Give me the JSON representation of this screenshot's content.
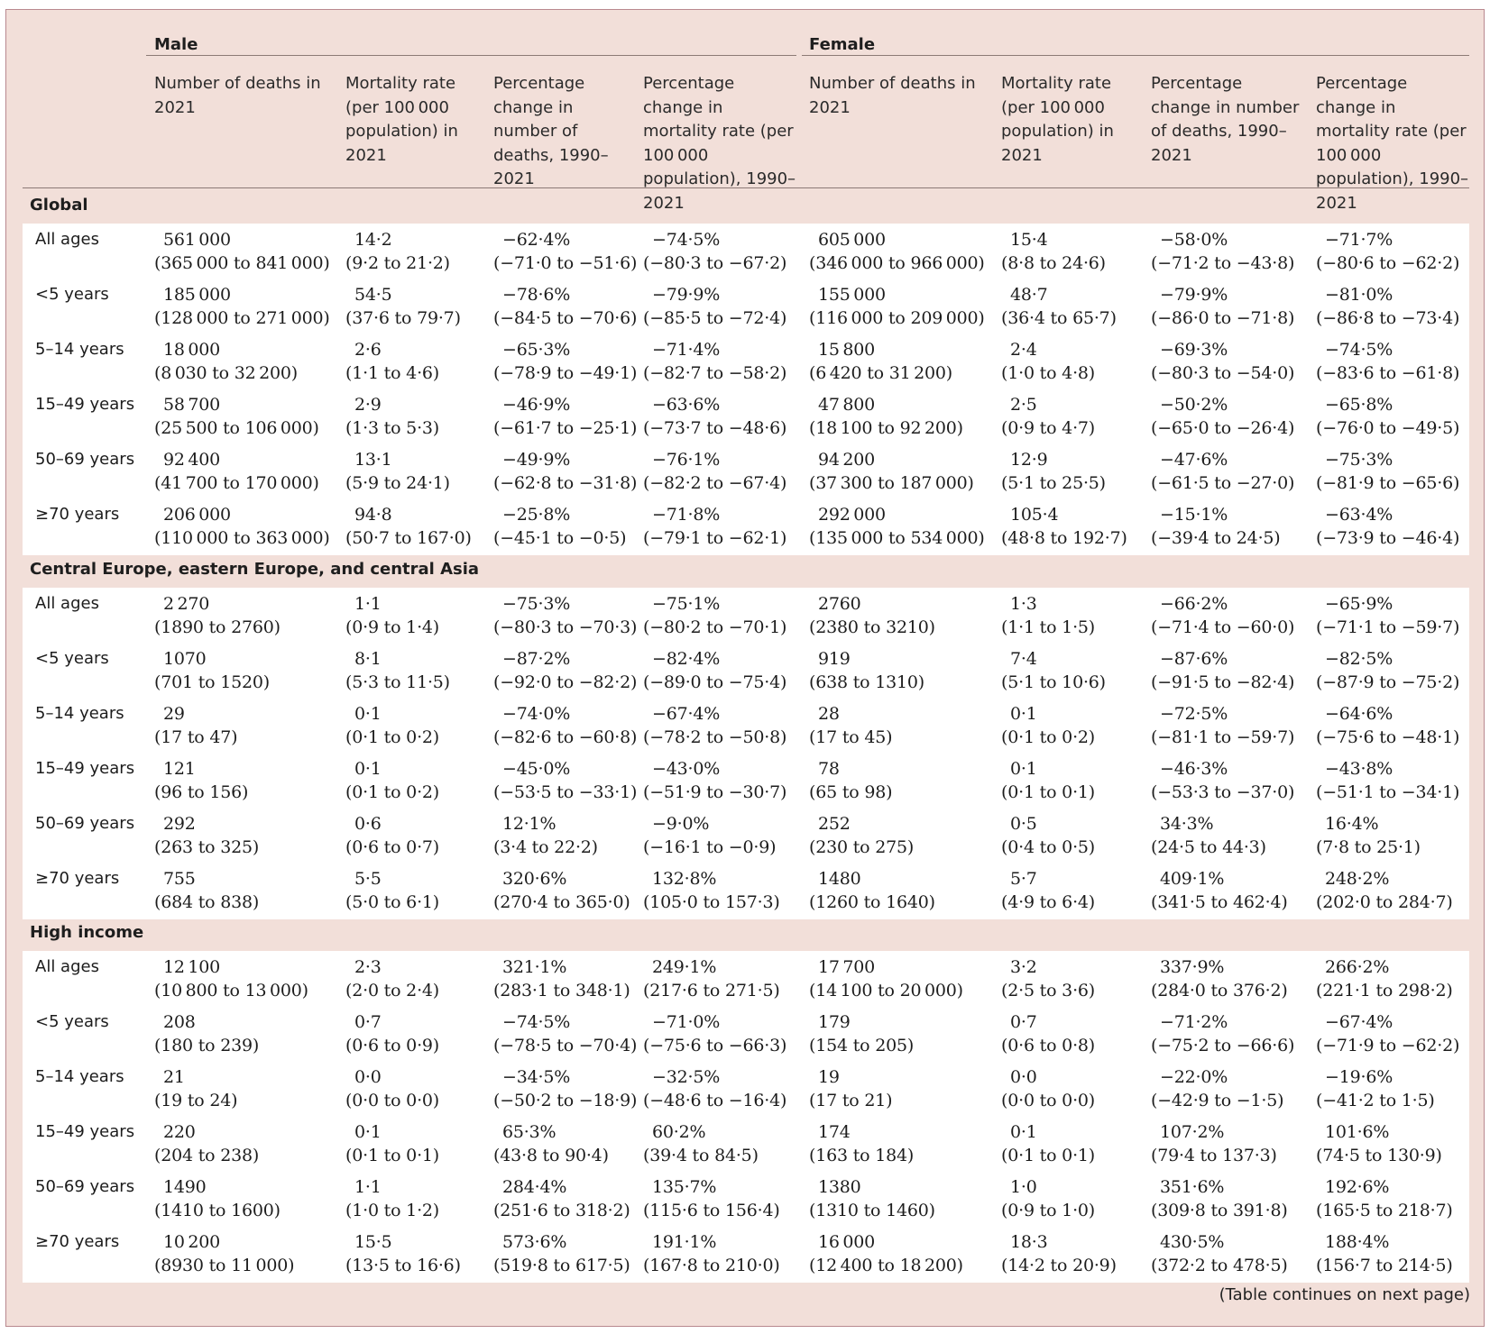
{
  "header": {
    "groups": {
      "male": "Male",
      "female": "Female"
    },
    "columns": [
      "Number of deaths in 2021",
      "Mortality rate (per 100 000 population) in 2021",
      "Percentage change in number of deaths, 1990–2021",
      "Percentage change in mortality rate (per 100 000 population), 1990–2021",
      "Number of deaths in 2021",
      "Mortality rate (per 100 000 population) in 2021",
      "Percentage change in number of deaths, 1990–2021",
      "Percentage change in mortality rate (per 100 000 population), 1990–2021"
    ]
  },
  "sections": [
    {
      "title": "Global",
      "rows": [
        {
          "label": "All ages",
          "cells": [
            {
              "v": "561 000",
              "ci": "(365 000 to 841 000)"
            },
            {
              "v": "14·2",
              "ci": "(9·2 to 21·2)"
            },
            {
              "v": "−62·4%",
              "ci": "(−71·0 to −51·6)"
            },
            {
              "v": "−74·5%",
              "ci": "(−80·3 to −67·2)"
            },
            {
              "v": "605 000",
              "ci": "(346 000 to 966 000)"
            },
            {
              "v": "15·4",
              "ci": "(8·8 to 24·6)"
            },
            {
              "v": "−58·0%",
              "ci": "(−71·2 to −43·8)"
            },
            {
              "v": "−71·7%",
              "ci": "(−80·6 to −62·2)"
            }
          ]
        },
        {
          "label": "<5 years",
          "cells": [
            {
              "v": "185 000",
              "ci": "(128 000 to 271 000)"
            },
            {
              "v": "54·5",
              "ci": "(37·6 to 79·7)"
            },
            {
              "v": "−78·6%",
              "ci": "(−84·5 to −70·6)"
            },
            {
              "v": "−79·9%",
              "ci": "(−85·5 to −72·4)"
            },
            {
              "v": "155 000",
              "ci": "(116 000 to 209 000)"
            },
            {
              "v": "48·7",
              "ci": "(36·4 to 65·7)"
            },
            {
              "v": "−79·9%",
              "ci": "(−86·0 to −71·8)"
            },
            {
              "v": "−81·0%",
              "ci": "(−86·8 to −73·4)"
            }
          ]
        },
        {
          "label": "5–14 years",
          "cells": [
            {
              "v": "18 000",
              "ci": "(8 030 to 32 200)"
            },
            {
              "v": "2·6",
              "ci": "(1·1 to 4·6)"
            },
            {
              "v": "−65·3%",
              "ci": "(−78·9 to −49·1)"
            },
            {
              "v": "−71·4%",
              "ci": "(−82·7 to −58·2)"
            },
            {
              "v": "15 800",
              "ci": "(6 420 to 31 200)"
            },
            {
              "v": "2·4",
              "ci": "(1·0 to 4·8)"
            },
            {
              "v": "−69·3%",
              "ci": "(−80·3 to −54·0)"
            },
            {
              "v": "−74·5%",
              "ci": "(−83·6 to −61·8)"
            }
          ]
        },
        {
          "label": "15–49 years",
          "cells": [
            {
              "v": "58 700",
              "ci": "(25 500 to 106 000)"
            },
            {
              "v": "2·9",
              "ci": "(1·3 to 5·3)"
            },
            {
              "v": "−46·9%",
              "ci": "(−61·7 to −25·1)"
            },
            {
              "v": "−63·6%",
              "ci": "(−73·7 to −48·6)"
            },
            {
              "v": "47 800",
              "ci": "(18 100 to 92 200)"
            },
            {
              "v": "2·5",
              "ci": "(0·9 to 4·7)"
            },
            {
              "v": "−50·2%",
              "ci": "(−65·0 to −26·4)"
            },
            {
              "v": "−65·8%",
              "ci": "(−76·0 to −49·5)"
            }
          ]
        },
        {
          "label": "50–69 years",
          "cells": [
            {
              "v": "92 400",
              "ci": "(41 700 to 170 000)"
            },
            {
              "v": "13·1",
              "ci": "(5·9 to 24·1)"
            },
            {
              "v": "−49·9%",
              "ci": "(−62·8 to −31·8)"
            },
            {
              "v": "−76·1%",
              "ci": "(−82·2 to −67·4)"
            },
            {
              "v": "94 200",
              "ci": "(37 300 to 187 000)"
            },
            {
              "v": "12·9",
              "ci": "(5·1 to 25·5)"
            },
            {
              "v": "−47·6%",
              "ci": "(−61·5 to −27·0)"
            },
            {
              "v": "−75·3%",
              "ci": "(−81·9 to −65·6)"
            }
          ]
        },
        {
          "label": "≥70 years",
          "cells": [
            {
              "v": "206 000",
              "ci": "(110 000 to 363 000)"
            },
            {
              "v": "94·8",
              "ci": "(50·7 to 167·0)"
            },
            {
              "v": "−25·8%",
              "ci": "(−45·1 to −0·5)"
            },
            {
              "v": "−71·8%",
              "ci": "(−79·1 to −62·1)"
            },
            {
              "v": "292 000",
              "ci": "(135 000 to 534 000)"
            },
            {
              "v": "105·4",
              "ci": "(48·8 to 192·7)"
            },
            {
              "v": "−15·1%",
              "ci": "(−39·4 to 24·5)"
            },
            {
              "v": "−63·4%",
              "ci": "(−73·9 to −46·4)"
            }
          ]
        }
      ]
    },
    {
      "title": "Central Europe, eastern Europe, and central Asia",
      "rows": [
        {
          "label": "All ages",
          "cells": [
            {
              "v": "2 270",
              "ci": "(1890 to 2760)"
            },
            {
              "v": "1·1",
              "ci": "(0·9 to 1·4)"
            },
            {
              "v": "−75·3%",
              "ci": "(−80·3 to −70·3)"
            },
            {
              "v": "−75·1%",
              "ci": "(−80·2 to −70·1)"
            },
            {
              "v": "2760",
              "ci": "(2380 to 3210)"
            },
            {
              "v": "1·3",
              "ci": "(1·1 to 1·5)"
            },
            {
              "v": "−66·2%",
              "ci": "(−71·4 to −60·0)"
            },
            {
              "v": "−65·9%",
              "ci": "(−71·1 to −59·7)"
            }
          ]
        },
        {
          "label": "<5 years",
          "cells": [
            {
              "v": "1070",
              "ci": "(701 to 1520)"
            },
            {
              "v": "8·1",
              "ci": "(5·3 to 11·5)"
            },
            {
              "v": "−87·2%",
              "ci": "(−92·0 to −82·2)"
            },
            {
              "v": "−82·4%",
              "ci": "(−89·0 to −75·4)"
            },
            {
              "v": "919",
              "ci": "(638 to 1310)"
            },
            {
              "v": "7·4",
              "ci": "(5·1 to 10·6)"
            },
            {
              "v": "−87·6%",
              "ci": "(−91·5 to −82·4)"
            },
            {
              "v": "−82·5%",
              "ci": "(−87·9 to −75·2)"
            }
          ]
        },
        {
          "label": "5–14 years",
          "cells": [
            {
              "v": "29",
              "ci": "(17 to 47)"
            },
            {
              "v": "0·1",
              "ci": "(0·1 to 0·2)"
            },
            {
              "v": "−74·0%",
              "ci": "(−82·6 to −60·8)"
            },
            {
              "v": "−67·4%",
              "ci": "(−78·2 to −50·8)"
            },
            {
              "v": "28",
              "ci": "(17 to 45)"
            },
            {
              "v": "0·1",
              "ci": "(0·1 to 0·2)"
            },
            {
              "v": "−72·5%",
              "ci": "(−81·1 to −59·7)"
            },
            {
              "v": "−64·6%",
              "ci": "(−75·6 to −48·1)"
            }
          ]
        },
        {
          "label": "15–49 years",
          "cells": [
            {
              "v": "121",
              "ci": "(96 to 156)"
            },
            {
              "v": "0·1",
              "ci": "(0·1 to 0·2)"
            },
            {
              "v": "−45·0%",
              "ci": "(−53·5 to −33·1)"
            },
            {
              "v": "−43·0%",
              "ci": "(−51·9 to −30·7)"
            },
            {
              "v": "78",
              "ci": "(65 to 98)"
            },
            {
              "v": "0·1",
              "ci": "(0·1 to 0·1)"
            },
            {
              "v": "−46·3%",
              "ci": "(−53·3 to −37·0)"
            },
            {
              "v": "−43·8%",
              "ci": "(−51·1 to −34·1)"
            }
          ]
        },
        {
          "label": "50–69 years",
          "cells": [
            {
              "v": "292",
              "ci": "(263 to 325)"
            },
            {
              "v": "0·6",
              "ci": "(0·6 to 0·7)"
            },
            {
              "v": "12·1%",
              "ci": "(3·4 to 22·2)"
            },
            {
              "v": "−9·0%",
              "ci": "(−16·1 to −0·9)"
            },
            {
              "v": "252",
              "ci": "(230 to 275)"
            },
            {
              "v": "0·5",
              "ci": "(0·4 to 0·5)"
            },
            {
              "v": "34·3%",
              "ci": "(24·5 to 44·3)"
            },
            {
              "v": "16·4%",
              "ci": "(7·8 to 25·1)"
            }
          ]
        },
        {
          "label": "≥70 years",
          "cells": [
            {
              "v": "755",
              "ci": "(684 to 838)"
            },
            {
              "v": "5·5",
              "ci": "(5·0 to 6·1)"
            },
            {
              "v": "320·6%",
              "ci": "(270·4 to 365·0)"
            },
            {
              "v": "132·8%",
              "ci": "(105·0 to 157·3)"
            },
            {
              "v": "1480",
              "ci": "(1260 to 1640)"
            },
            {
              "v": "5·7",
              "ci": "(4·9 to 6·4)"
            },
            {
              "v": "409·1%",
              "ci": "(341·5 to 462·4)"
            },
            {
              "v": "248·2%",
              "ci": "(202·0 to 284·7)"
            }
          ]
        }
      ]
    },
    {
      "title": "High income",
      "rows": [
        {
          "label": "All ages",
          "cells": [
            {
              "v": "12 100",
              "ci": "(10 800 to 13 000)"
            },
            {
              "v": "2·3",
              "ci": "(2·0 to 2·4)"
            },
            {
              "v": "321·1%",
              "ci": "(283·1 to 348·1)"
            },
            {
              "v": "249·1%",
              "ci": "(217·6 to 271·5)"
            },
            {
              "v": "17 700",
              "ci": "(14 100 to 20 000)"
            },
            {
              "v": "3·2",
              "ci": "(2·5 to 3·6)"
            },
            {
              "v": "337·9%",
              "ci": "(284·0 to 376·2)"
            },
            {
              "v": "266·2%",
              "ci": "(221·1 to 298·2)"
            }
          ]
        },
        {
          "label": "<5 years",
          "cells": [
            {
              "v": "208",
              "ci": "(180 to 239)"
            },
            {
              "v": "0·7",
              "ci": "(0·6 to 0·9)"
            },
            {
              "v": "−74·5%",
              "ci": "(−78·5 to −70·4)"
            },
            {
              "v": "−71·0%",
              "ci": "(−75·6 to −66·3)"
            },
            {
              "v": "179",
              "ci": "(154 to 205)"
            },
            {
              "v": "0·7",
              "ci": "(0·6 to 0·8)"
            },
            {
              "v": "−71·2%",
              "ci": "(−75·2 to −66·6)"
            },
            {
              "v": "−67·4%",
              "ci": "(−71·9 to −62·2)"
            }
          ]
        },
        {
          "label": "5–14 years",
          "cells": [
            {
              "v": "21",
              "ci": "(19 to 24)"
            },
            {
              "v": "0·0",
              "ci": "(0·0 to 0·0)"
            },
            {
              "v": "−34·5%",
              "ci": "(−50·2 to −18·9)"
            },
            {
              "v": "−32·5%",
              "ci": "(−48·6 to −16·4)"
            },
            {
              "v": "19",
              "ci": "(17 to 21)"
            },
            {
              "v": "0·0",
              "ci": "(0·0 to 0·0)"
            },
            {
              "v": "−22·0%",
              "ci": "(−42·9 to −1·5)"
            },
            {
              "v": "−19·6%",
              "ci": "(−41·2 to 1·5)"
            }
          ]
        },
        {
          "label": "15–49 years",
          "cells": [
            {
              "v": "220",
              "ci": "(204 to 238)"
            },
            {
              "v": "0·1",
              "ci": "(0·1 to 0·1)"
            },
            {
              "v": "65·3%",
              "ci": "(43·8 to 90·4)"
            },
            {
              "v": "60·2%",
              "ci": "(39·4 to 84·5)"
            },
            {
              "v": "174",
              "ci": "(163 to 184)"
            },
            {
              "v": "0·1",
              "ci": "(0·1 to 0·1)"
            },
            {
              "v": "107·2%",
              "ci": "(79·4 to 137·3)"
            },
            {
              "v": "101·6%",
              "ci": "(74·5 to 130·9)"
            }
          ]
        },
        {
          "label": "50–69 years",
          "cells": [
            {
              "v": "1490",
              "ci": "(1410 to 1600)"
            },
            {
              "v": "1·1",
              "ci": "(1·0 to 1·2)"
            },
            {
              "v": "284·4%",
              "ci": "(251·6 to 318·2)"
            },
            {
              "v": "135·7%",
              "ci": "(115·6 to 156·4)"
            },
            {
              "v": "1380",
              "ci": "(1310 to 1460)"
            },
            {
              "v": "1·0",
              "ci": "(0·9 to 1·0)"
            },
            {
              "v": "351·6%",
              "ci": "(309·8 to 391·8)"
            },
            {
              "v": "192·6%",
              "ci": "(165·5 to 218·7)"
            }
          ]
        },
        {
          "label": "≥70 years",
          "cells": [
            {
              "v": "10 200",
              "ci": "(8930 to 11 000)"
            },
            {
              "v": "15·5",
              "ci": "(13·5 to 16·6)"
            },
            {
              "v": "573·6%",
              "ci": "(519·8 to 617·5)"
            },
            {
              "v": "191·1%",
              "ci": "(167·8 to 210·0)"
            },
            {
              "v": "16 000",
              "ci": "(12 400 to 18 200)"
            },
            {
              "v": "18·3",
              "ci": "(14·2 to 20·9)"
            },
            {
              "v": "430·5%",
              "ci": "(372·2 to 478·5)"
            },
            {
              "v": "188·4%",
              "ci": "(156·7 to 214·5)"
            }
          ]
        }
      ]
    }
  ],
  "footnote": "(Table continues on next page)"
}
